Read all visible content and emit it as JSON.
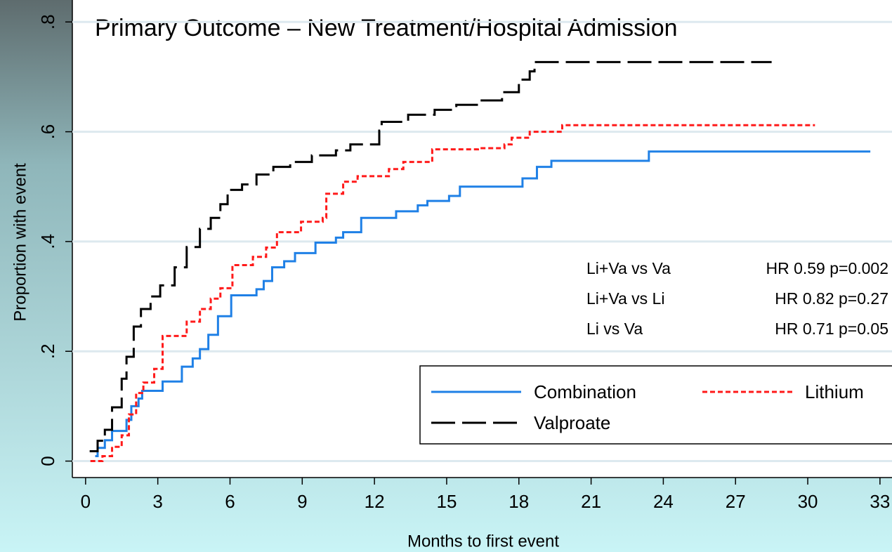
{
  "chart_data": {
    "type": "step",
    "title": "Primary Outcome – New Treatment/Hospital Admission",
    "x_label": "Months to first event",
    "y_label": "Proportion with event",
    "xlim": [
      -0.55,
      33.5
    ],
    "ylim": [
      -0.03,
      0.84
    ],
    "xticks": [
      0,
      3,
      6,
      9,
      12,
      15,
      18,
      21,
      24,
      27,
      30,
      33
    ],
    "yticks": [
      0,
      {
        "value": 0.2,
        "label": ".2"
      },
      {
        "value": 0.4,
        "label": ".4"
      },
      {
        "value": 0.6,
        "label": ".6"
      },
      {
        "value": 0.8,
        "label": ".8"
      }
    ],
    "grid": true,
    "series": [
      {
        "name": "Combination",
        "color": "#1f80e6",
        "dash": "none",
        "x": [
          0.4,
          0.5,
          0.8,
          1.1,
          1.7,
          1.9,
          2.2,
          2.35,
          3.2,
          4.0,
          4.45,
          4.75,
          5.1,
          5.5,
          6.05,
          7.1,
          7.4,
          7.75,
          8.25,
          8.7,
          9.55,
          10.4,
          10.7,
          11.45,
          12.9,
          13.8,
          14.2,
          15.1,
          15.55,
          18.15,
          18.75,
          19.35,
          23.4,
          32.6
        ],
        "values": [
          0.009,
          0.024,
          0.038,
          0.055,
          0.075,
          0.1,
          0.114,
          0.128,
          0.145,
          0.172,
          0.187,
          0.204,
          0.23,
          0.264,
          0.302,
          0.313,
          0.328,
          0.353,
          0.364,
          0.379,
          0.398,
          0.407,
          0.417,
          0.443,
          0.455,
          0.466,
          0.474,
          0.483,
          0.5,
          0.515,
          0.536,
          0.547,
          0.564,
          0.564
        ]
      },
      {
        "name": "Lithium",
        "color": "#ff1a1a",
        "dash": "7 4",
        "x": [
          0.2,
          0.7,
          1.1,
          1.5,
          1.8,
          2.1,
          2.4,
          2.85,
          3.2,
          4.2,
          4.75,
          5.2,
          5.6,
          6.1,
          6.95,
          7.5,
          7.95,
          8.95,
          9.85,
          10.0,
          10.7,
          11.3,
          12.6,
          13.2,
          14.4,
          16.3,
          17.4,
          17.7,
          18.45,
          19.8,
          30.3
        ],
        "values": [
          0.0,
          0.009,
          0.026,
          0.047,
          0.085,
          0.124,
          0.143,
          0.168,
          0.228,
          0.254,
          0.277,
          0.296,
          0.315,
          0.357,
          0.372,
          0.389,
          0.417,
          0.436,
          0.443,
          0.487,
          0.509,
          0.519,
          0.532,
          0.545,
          0.568,
          0.57,
          0.577,
          0.589,
          0.6,
          0.612,
          0.612
        ]
      },
      {
        "name": "Valproate",
        "color": "#000000",
        "dash": "34 10",
        "x": [
          0.17,
          0.5,
          0.8,
          1.1,
          1.5,
          1.7,
          2.0,
          2.3,
          2.7,
          3.1,
          3.7,
          4.2,
          4.75,
          5.2,
          5.6,
          5.9,
          6.5,
          7.1,
          7.8,
          8.5,
          9.4,
          10.4,
          11.0,
          12.2,
          12.3,
          13.4,
          14.5,
          15.4,
          16.3,
          17.3,
          18.0,
          18.45,
          18.65,
          28.5
        ],
        "values": [
          0.018,
          0.037,
          0.057,
          0.098,
          0.15,
          0.19,
          0.245,
          0.277,
          0.3,
          0.32,
          0.353,
          0.39,
          0.423,
          0.443,
          0.468,
          0.494,
          0.504,
          0.522,
          0.536,
          0.545,
          0.557,
          0.566,
          0.577,
          0.602,
          0.618,
          0.631,
          0.64,
          0.649,
          0.657,
          0.672,
          0.695,
          0.71,
          0.727,
          0.727
        ]
      }
    ],
    "annotations": [
      {
        "label": "Li+Va vs Va",
        "stat": "HR 0.59 p=0.002"
      },
      {
        "label": "Li+Va vs Li",
        "stat": "HR 0.82 p=0.27"
      },
      {
        "label": "Li vs Va",
        "stat": "HR 0.71 p=0.05"
      }
    ]
  }
}
